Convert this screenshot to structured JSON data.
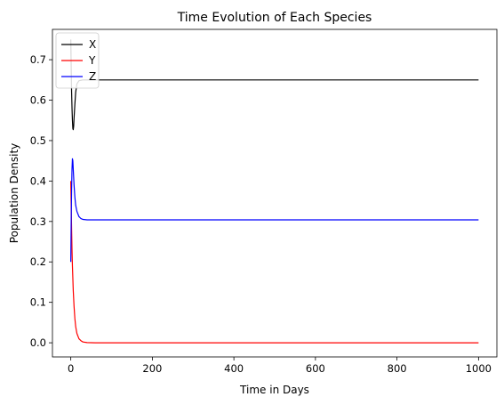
{
  "chart_data": {
    "type": "line",
    "title": "Time Evolution of Each Species",
    "xlabel": "Time in Days",
    "ylabel": "Population Density",
    "xlim": [
      -45,
      1045
    ],
    "ylim": [
      -0.035,
      0.775
    ],
    "xticks": [
      0,
      200,
      400,
      600,
      800,
      1000
    ],
    "yticks": [
      0.0,
      0.1,
      0.2,
      0.3,
      0.4,
      0.5,
      0.6,
      0.7
    ],
    "ytick_labels": [
      "0.0",
      "0.1",
      "0.2",
      "0.3",
      "0.4",
      "0.5",
      "0.6",
      "0.7"
    ],
    "grid": false,
    "legend_position": "upper-left",
    "series": [
      {
        "name": "X",
        "color": "#000000",
        "x": [
          0,
          1,
          2,
          3,
          4,
          5,
          6,
          7,
          8,
          10,
          12,
          15,
          20,
          30,
          50,
          100,
          1000
        ],
        "y": [
          0.75,
          0.68,
          0.62,
          0.58,
          0.55,
          0.53,
          0.527,
          0.535,
          0.555,
          0.59,
          0.62,
          0.64,
          0.648,
          0.65,
          0.65,
          0.65,
          0.65
        ]
      },
      {
        "name": "Y",
        "color": "#ff0000",
        "x": [
          0,
          1,
          2,
          3,
          4,
          5,
          6,
          8,
          10,
          12,
          15,
          20,
          25,
          30,
          40,
          60,
          100,
          1000
        ],
        "y": [
          0.4,
          0.34,
          0.28,
          0.23,
          0.19,
          0.16,
          0.13,
          0.09,
          0.06,
          0.04,
          0.023,
          0.01,
          0.005,
          0.002,
          0.0005,
          0.0,
          0.0,
          0.0
        ]
      },
      {
        "name": "Z",
        "color": "#0000ff",
        "x": [
          0,
          1,
          2,
          3,
          4,
          5,
          6,
          7,
          8,
          10,
          12,
          15,
          20,
          25,
          30,
          40,
          60,
          100,
          1000
        ],
        "y": [
          0.2,
          0.3,
          0.38,
          0.43,
          0.455,
          0.45,
          0.43,
          0.41,
          0.39,
          0.36,
          0.34,
          0.325,
          0.312,
          0.307,
          0.305,
          0.304,
          0.304,
          0.304,
          0.304
        ]
      }
    ]
  }
}
